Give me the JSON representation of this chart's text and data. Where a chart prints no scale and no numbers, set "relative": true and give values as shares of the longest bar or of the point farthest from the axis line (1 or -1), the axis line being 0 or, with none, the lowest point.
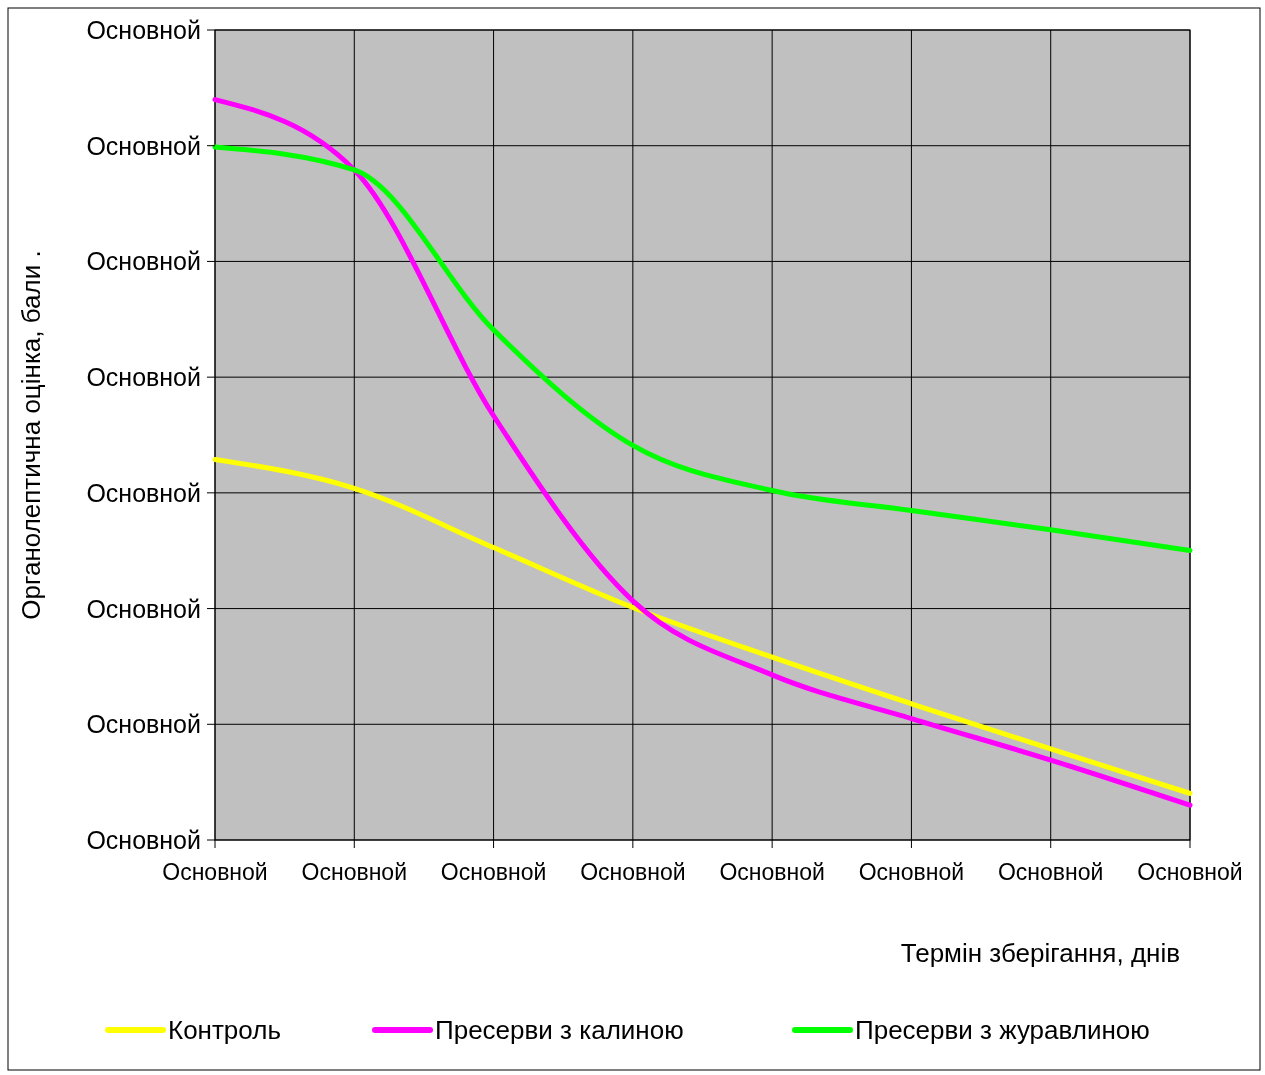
{
  "chart_data": {
    "type": "line",
    "xlabel": "Термін зберігання, днів",
    "ylabel": "Органолептична оцінка, бали .",
    "relative": true,
    "categories": [
      "Основной",
      "Основной",
      "Основной",
      "Основной",
      "Основной",
      "Основной",
      "Основной",
      "Основной"
    ],
    "annotations": [
      "Основной",
      "Основной",
      "Основной",
      "Основной",
      "Основной",
      "Основной",
      "Основной",
      "Основной"
    ],
    "grid": true,
    "legend": "bottom",
    "marker": "none",
    "line_style": "solid",
    "series": [
      {
        "name": "Контроль",
        "color": "#ffff00",
        "values": [
          0.514,
          0.475,
          0.395,
          0.314,
          0.247,
          0.184,
          0.123,
          0.063
        ]
      },
      {
        "name": "Пресерви з калиною",
        "color": "#ff00ff",
        "values": [
          1,
          0.905,
          0.573,
          0.323,
          0.223,
          0.164,
          0.108,
          0.047
        ]
      },
      {
        "name": "Пресерви з журавлиною",
        "color": "#00ff00",
        "values": [
          0.936,
          0.905,
          0.689,
          0.533,
          0.472,
          0.445,
          0.419,
          0.391
        ]
      }
    ]
  }
}
